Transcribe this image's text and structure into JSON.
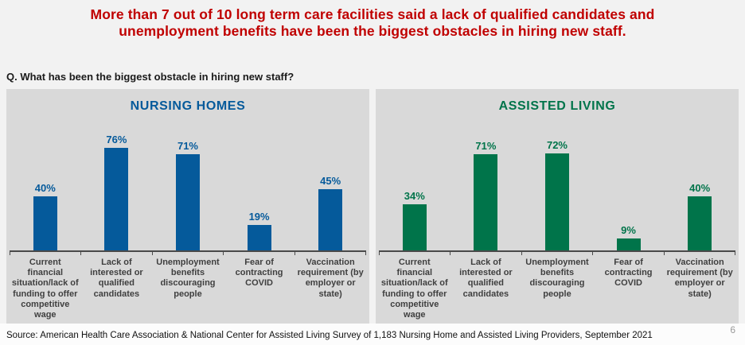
{
  "header": {
    "title": "More than 7 out of 10 long term care facilities said a lack of qualified candidates and\nunemployment benefits have been the biggest obstacles in hiring new staff.",
    "title_color": "#C00000",
    "question": "Q. What has been the biggest obstacle in hiring new staff?"
  },
  "chart_data": [
    {
      "type": "bar",
      "title": "NURSING HOMES",
      "bar_color": "#055A9B",
      "panel_bg": "#D9D9D9",
      "unit": "%",
      "ylim": [
        0,
        100
      ],
      "grid": false,
      "legend": "none",
      "categories": [
        "Current financial situation/lack of funding to offer competitive wage",
        "Lack of interested or qualified candidates",
        "Unemployment benefits discouraging people",
        "Fear of contracting COVID",
        "Vaccination requirement (by employer or state)"
      ],
      "values": [
        40,
        76,
        71,
        19,
        45
      ],
      "value_labels": [
        "40%",
        "76%",
        "71%",
        "19%",
        "45%"
      ],
      "categories_wrapped": [
        "Current financial\nsituation/lack of\nfunding to offer\ncompetitive wage",
        "Lack of\ninterested or\nqualified\ncandidates",
        "Unemployment\nbenefits\ndiscouraging\npeople",
        "Fear of\ncontracting\nCOVID",
        "Vaccination\nrequirement (by\nemployer or\nstate)"
      ]
    },
    {
      "type": "bar",
      "title": "ASSISTED LIVING",
      "bar_color": "#00744A",
      "panel_bg": "#D9D9D9",
      "unit": "%",
      "ylim": [
        0,
        100
      ],
      "grid": false,
      "legend": "none",
      "categories": [
        "Current financial situation/lack of funding to offer competitive wage",
        "Lack of interested or qualified candidates",
        "Unemployment benefits discouraging people",
        "Fear of contracting COVID",
        "Vaccination requirement (by employer or state)"
      ],
      "values": [
        34,
        71,
        72,
        9,
        40
      ],
      "value_labels": [
        "34%",
        "71%",
        "72%",
        "9%",
        "40%"
      ],
      "categories_wrapped": [
        "Current\nfinancial\nsituation/lack of\nfunding to offer\ncompetitive\nwage",
        "Lack of\ninterested or\nqualified\ncandidates",
        "Unemployment\nbenefits\ndiscouraging\npeople",
        "Fear of\ncontracting\nCOVID",
        "Vaccination\nrequirement (by\nemployer or\nstate)"
      ]
    }
  ],
  "footer": {
    "source": "Source: American Health Care Association & National Center for Assisted Living Survey of 1,183 Nursing Home and Assisted Living Providers, September 2021",
    "page_number": "6"
  }
}
